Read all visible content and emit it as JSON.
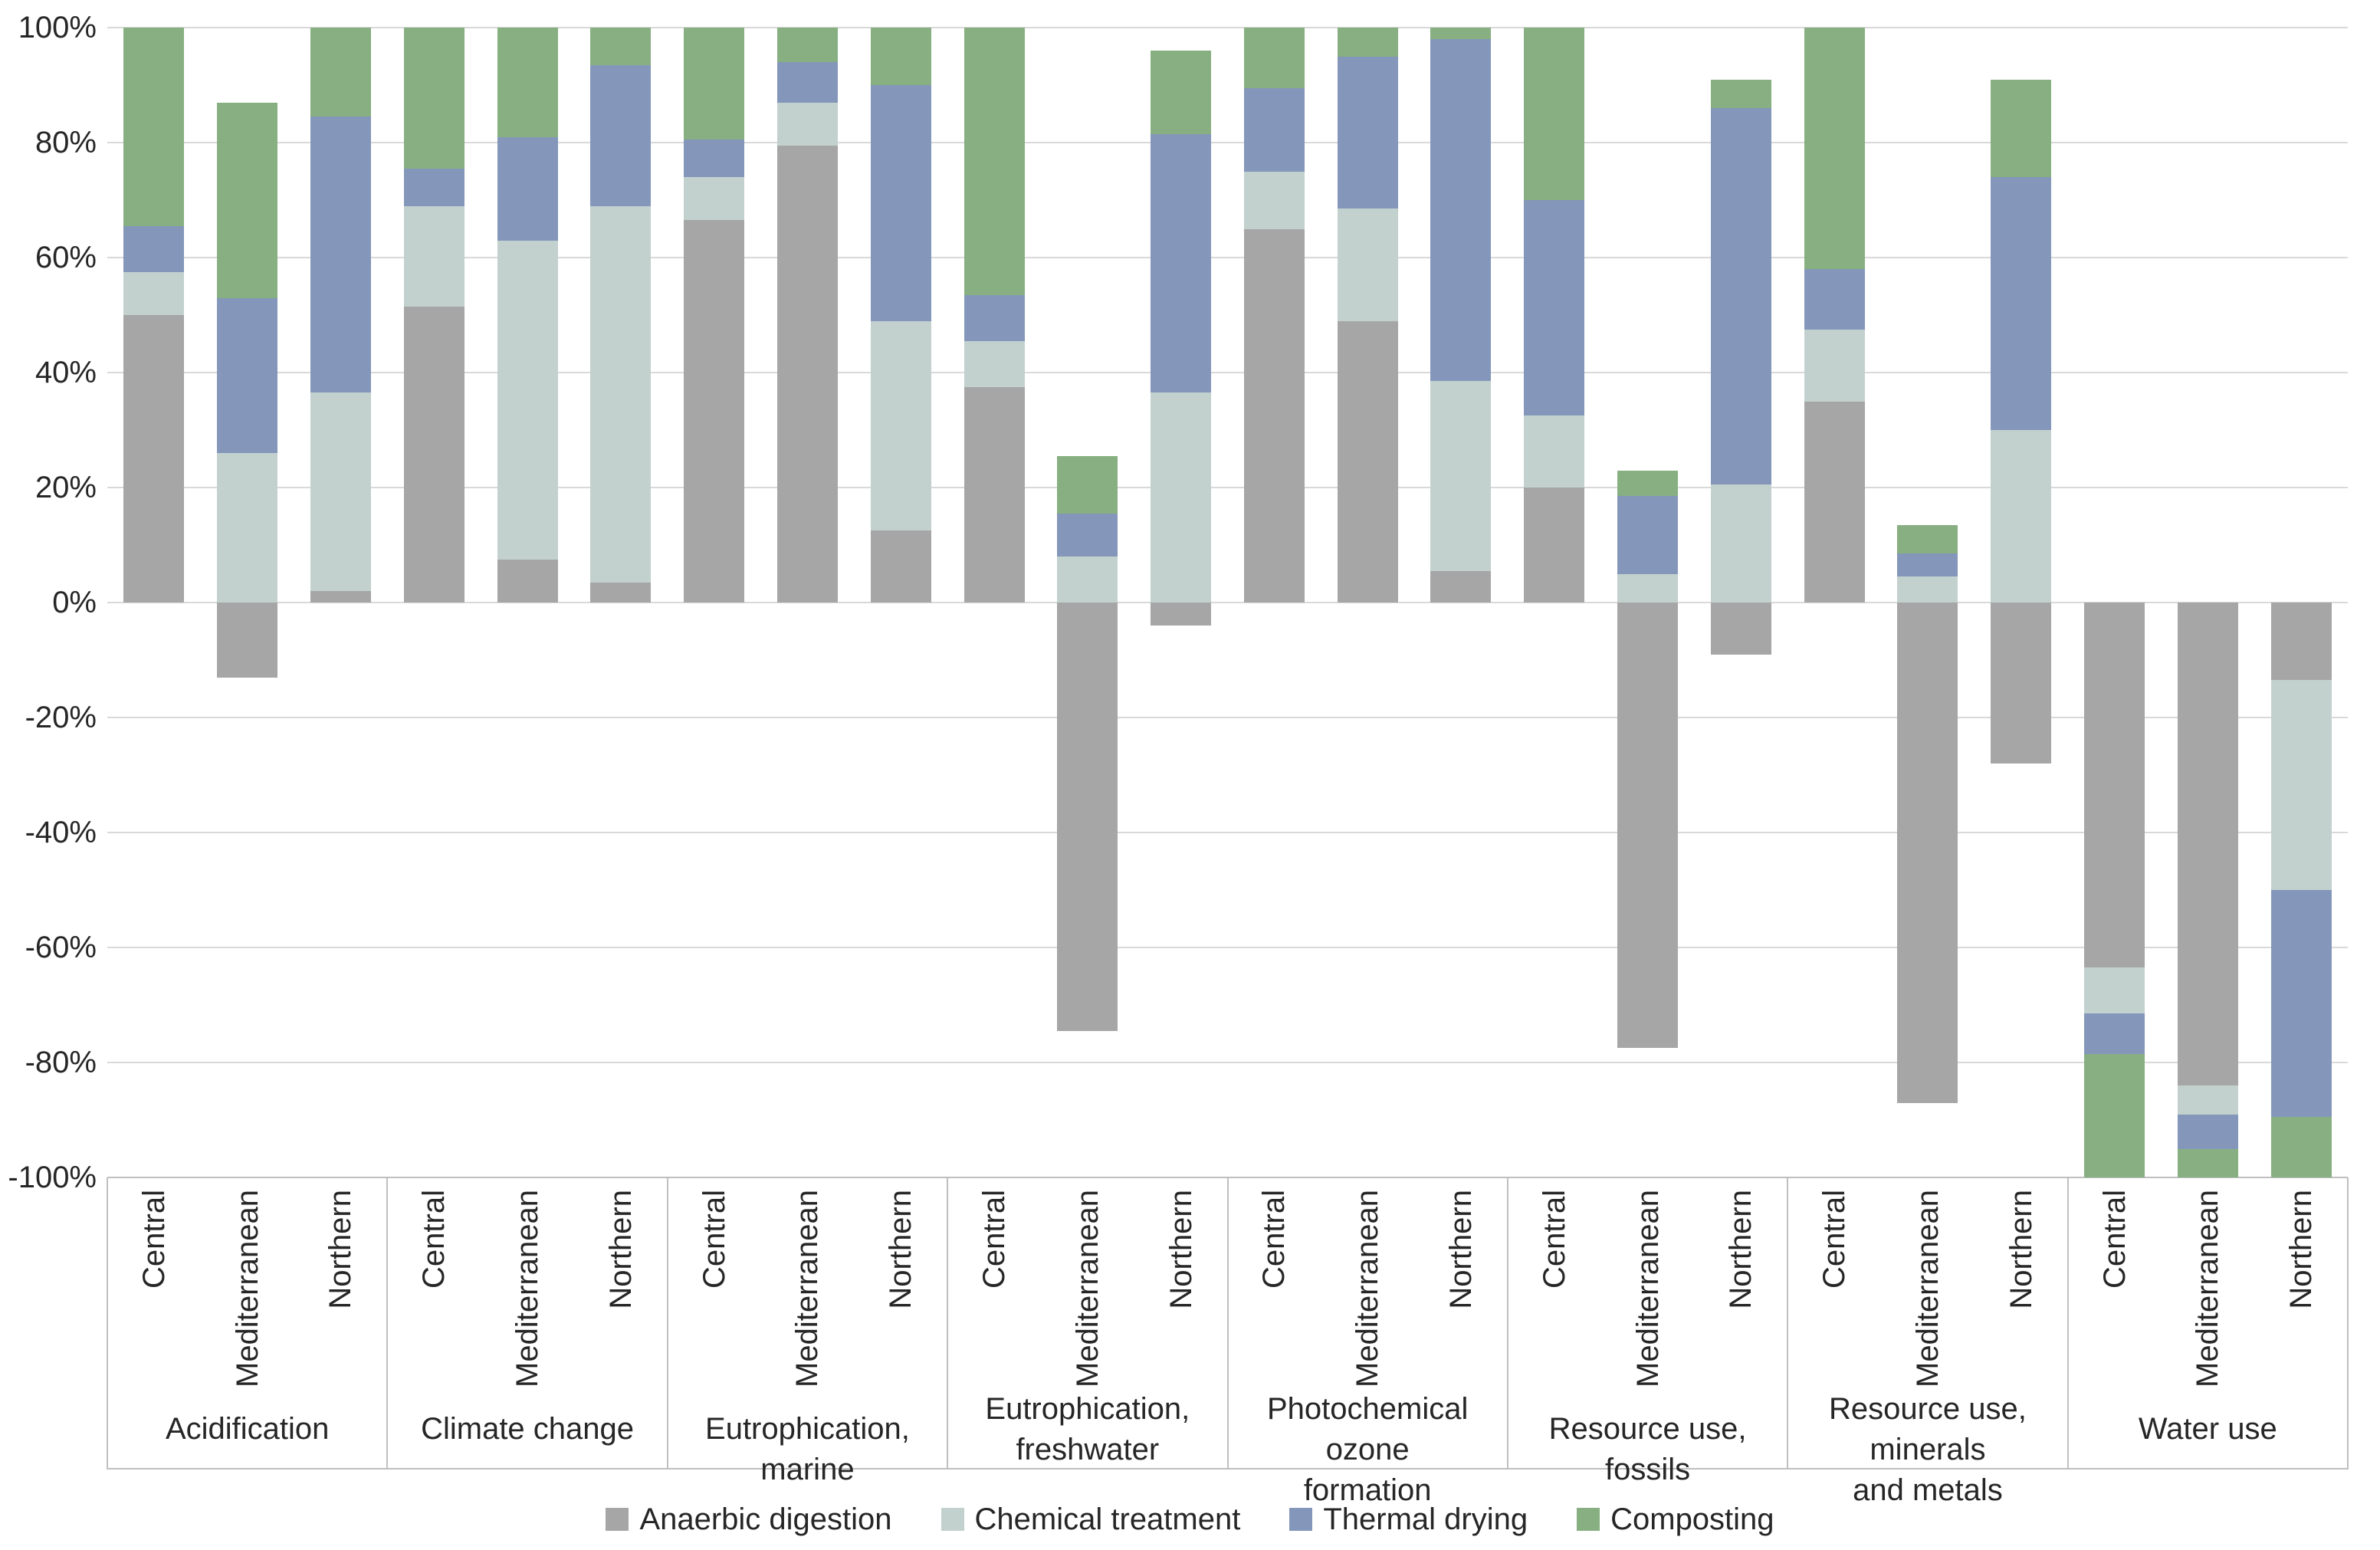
{
  "chart_data": {
    "type": "bar",
    "stacked": true,
    "orientation": "vertical",
    "unit": "percent",
    "title": "",
    "xlabel": "",
    "ylabel": "",
    "ylim": [
      -100,
      100
    ],
    "ytick_step": 20,
    "ytick_labels": [
      "100%",
      "80%",
      "60%",
      "40%",
      "20%",
      "0%",
      "-20%",
      "-40%",
      "-60%",
      "-80%",
      "-100%"
    ],
    "grid": "horizontal",
    "legend_position": "bottom",
    "colors": {
      "gridline": "#d9d9d9",
      "axis_box": "#bfbfbf",
      "text": "#262626",
      "background": "#ffffff"
    },
    "series": [
      {
        "name": "Anaerbic digestion",
        "color": "#a6a6a6"
      },
      {
        "name": "Chemical treatment",
        "color": "#c2d1ce"
      },
      {
        "name": "Thermal drying",
        "color": "#8497ba"
      },
      {
        "name": "Composting",
        "color": "#87af81"
      }
    ],
    "regions": [
      "Central",
      "Mediterranean",
      "Northern"
    ],
    "groups": [
      {
        "label": "Acidification",
        "label_lines": [
          "Acidification"
        ],
        "bars": [
          {
            "region": "Central",
            "values": [
              50,
              7.5,
              8,
              34.5
            ]
          },
          {
            "region": "Mediterranean",
            "values": [
              -13,
              26,
              27,
              34
            ]
          },
          {
            "region": "Northern",
            "values": [
              2,
              34.5,
              48,
              15.5
            ]
          }
        ]
      },
      {
        "label": "Climate change",
        "label_lines": [
          "Climate change"
        ],
        "bars": [
          {
            "region": "Central",
            "values": [
              51.5,
              17.5,
              6.5,
              24.5
            ]
          },
          {
            "region": "Mediterranean",
            "values": [
              7.5,
              55.5,
              18,
              19
            ]
          },
          {
            "region": "Northern",
            "values": [
              3.5,
              65.5,
              24.5,
              6.5
            ]
          }
        ]
      },
      {
        "label": "Eutrophication, marine",
        "label_lines": [
          "Eutrophication, marine"
        ],
        "bars": [
          {
            "region": "Central",
            "values": [
              66.5,
              7.5,
              6.5,
              19.5
            ]
          },
          {
            "region": "Mediterranean",
            "values": [
              79.5,
              7.5,
              7,
              6
            ]
          },
          {
            "region": "Northern",
            "values": [
              12.5,
              36.5,
              41,
              10
            ]
          }
        ]
      },
      {
        "label": "Eutrophication, freshwater",
        "label_lines": [
          "Eutrophication,",
          "freshwater"
        ],
        "bars": [
          {
            "region": "Central",
            "values": [
              37.5,
              8,
              8,
              46.5
            ]
          },
          {
            "region": "Mediterranean",
            "values": [
              -74.5,
              8,
              7.5,
              10
            ]
          },
          {
            "region": "Northern",
            "values": [
              -4,
              36.5,
              45,
              14.5
            ]
          }
        ]
      },
      {
        "label": "Photochemical ozone formation",
        "label_lines": [
          "Photochemical ozone",
          "formation"
        ],
        "bars": [
          {
            "region": "Central",
            "values": [
              65,
              10,
              14.5,
              10.5
            ]
          },
          {
            "region": "Mediterranean",
            "values": [
              49,
              19.5,
              26.5,
              5
            ]
          },
          {
            "region": "Northern",
            "values": [
              5.5,
              33,
              59.5,
              2
            ]
          }
        ]
      },
      {
        "label": "Resource use, fossils",
        "label_lines": [
          "Resource use, fossils"
        ],
        "bars": [
          {
            "region": "Central",
            "values": [
              20,
              12.5,
              37.5,
              30
            ]
          },
          {
            "region": "Mediterranean",
            "values": [
              -77.5,
              5,
              13.5,
              4.5
            ]
          },
          {
            "region": "Northern",
            "values": [
              -9,
              20.5,
              65.5,
              5
            ]
          }
        ]
      },
      {
        "label": "Resource use, minerals and metals",
        "label_lines": [
          "Resource use, minerals",
          "and metals"
        ],
        "bars": [
          {
            "region": "Central",
            "values": [
              35,
              12.5,
              10.5,
              42
            ]
          },
          {
            "region": "Mediterranean",
            "values": [
              -87,
              4.5,
              4,
              5
            ]
          },
          {
            "region": "Northern",
            "values": [
              -28,
              30,
              44,
              17
            ]
          }
        ]
      },
      {
        "label": "Water use",
        "label_lines": [
          "Water use"
        ],
        "bars": [
          {
            "region": "Central",
            "values": [
              -63.5,
              -8,
              -7,
              -21.5
            ]
          },
          {
            "region": "Mediterranean",
            "values": [
              -84,
              -5,
              -6,
              -5
            ]
          },
          {
            "region": "Northern",
            "values": [
              -13.5,
              -36.5,
              -39.5,
              -10.5
            ]
          }
        ]
      }
    ]
  }
}
